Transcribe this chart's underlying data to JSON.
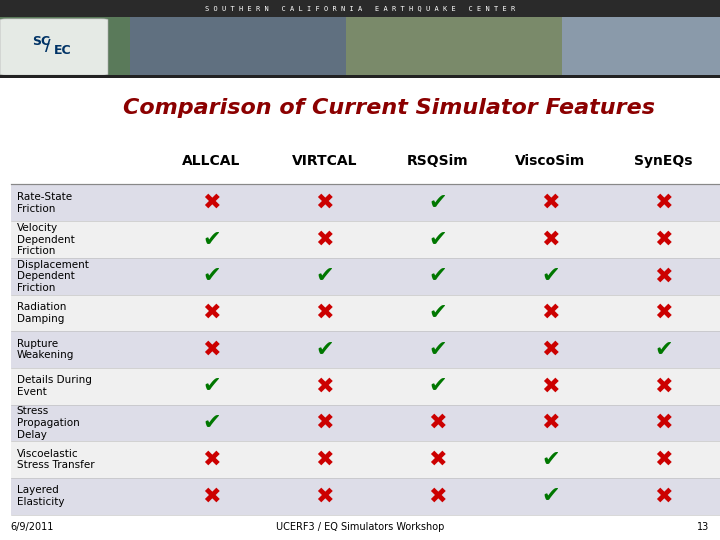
{
  "title": "Comparison of Current Simulator Features",
  "title_color": "#8B0000",
  "columns": [
    "ALLCAL",
    "VIRTCAL",
    "RSQSim",
    "ViscoSim",
    "SynEQs"
  ],
  "rows": [
    "Rate-State\nFriction",
    "Velocity\nDependent\nFriction",
    "Displacement\nDependent\nFriction",
    "Radiation\nDamping",
    "Rupture\nWeakening",
    "Details During\nEvent",
    "Stress\nPropagation\nDelay",
    "Viscoelastic\nStress Transfer",
    "Layered\nElasticity"
  ],
  "data": [
    [
      "x",
      "x",
      "c",
      "x",
      "x"
    ],
    [
      "c",
      "x",
      "c",
      "x",
      "x"
    ],
    [
      "c",
      "c",
      "c",
      "c",
      "x"
    ],
    [
      "x",
      "x",
      "c",
      "x",
      "x"
    ],
    [
      "x",
      "c",
      "c",
      "x",
      "c"
    ],
    [
      "c",
      "x",
      "c",
      "x",
      "x"
    ],
    [
      "c",
      "x",
      "x",
      "x",
      "x"
    ],
    [
      "x",
      "x",
      "x",
      "c",
      "x"
    ],
    [
      "x",
      "x",
      "x",
      "c",
      "x"
    ]
  ],
  "check_color": "#007700",
  "cross_color": "#CC0000",
  "row_bg_odd": "#dddde8",
  "row_bg_even": "#f0f0f0",
  "footer_text": "UCERF3 / EQ Simulators Workshop",
  "page_num": "13",
  "date_text": "6/9/2011",
  "bg_color": "#ffffff",
  "col_label_fontsize": 10,
  "row_label_fontsize": 7.5,
  "symbol_fontsize": 16,
  "title_fontsize": 16
}
